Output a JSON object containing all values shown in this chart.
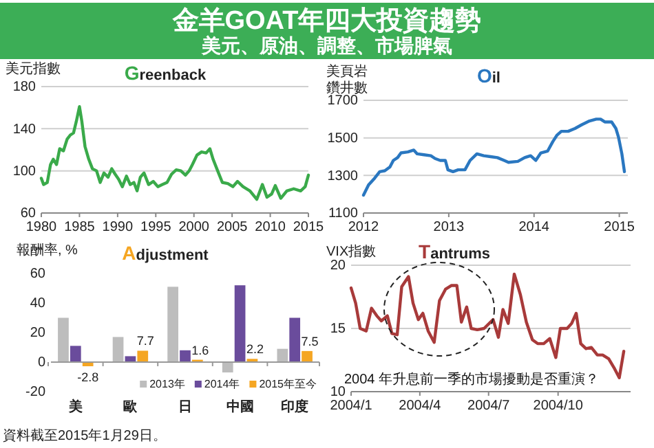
{
  "chart_data": [
    {
      "type": "other",
      "title": "金羊GOAT年四大投資趨勢",
      "subtitle": "美元、原油、調整、市場脾氣"
    },
    {
      "type": "line",
      "title": "Greenback",
      "ylabel": "美元指數",
      "grid": "y",
      "xlim": [
        1980,
        2015
      ],
      "xticks": [
        1980,
        1985,
        1990,
        1995,
        2000,
        2005,
        2010,
        2015
      ],
      "ylim": [
        60,
        180
      ],
      "yticks": [
        60,
        100,
        140,
        180
      ],
      "series": [
        {
          "color": "#3aaa4a",
          "x": [
            1980,
            1980.3,
            1980.78,
            1981.21,
            1981.57,
            1981.99,
            1982.41,
            1982.9,
            1983.38,
            1983.8,
            1984.22,
            1984.59,
            1985,
            1985.31,
            1985.73,
            1986.22,
            1986.7,
            1987.24,
            1987.72,
            1988.21,
            1988.75,
            1989.23,
            1989.66,
            1990.14,
            1990.62,
            1991.16,
            1991.65,
            1992.13,
            1992.55,
            1992.98,
            1993.46,
            1994.06,
            1994.67,
            1995.27,
            1995.87,
            1996.48,
            1997.08,
            1997.68,
            1998.29,
            1998.89,
            1999.37,
            1999.8,
            2000.4,
            2001,
            2001.6,
            2002.09,
            2002.51,
            2003.11,
            2003.72,
            2004.44,
            2005.11,
            2005.71,
            2006.43,
            2007.34,
            2008.24,
            2008.97,
            2009.57,
            2010.18,
            2010.66,
            2011.38,
            2012.17,
            2013.07,
            2013.98,
            2014.58,
            2015
          ],
          "values": [
            93,
            87,
            89,
            106,
            111,
            106,
            121,
            119,
            130,
            134,
            136,
            147,
            161,
            147,
            123,
            111,
            102,
            100,
            89,
            98,
            94,
            102,
            97,
            92,
            85,
            95,
            87,
            89,
            81,
            94,
            98,
            87,
            90,
            85,
            87,
            89,
            97,
            101,
            100,
            96,
            100,
            106,
            115,
            118,
            117,
            121,
            111,
            100,
            89,
            88,
            85,
            90,
            85,
            81,
            73,
            87,
            75,
            78,
            86,
            74,
            81,
            83,
            81,
            85,
            96
          ]
        }
      ]
    },
    {
      "type": "line",
      "title": "Oil",
      "ylabel": "美頁岩鑽井數",
      "grid": "y",
      "xlim": [
        2012,
        2015.1
      ],
      "xticks": [
        2012,
        2013,
        2014,
        2015
      ],
      "ylim": [
        1100,
        1700
      ],
      "yticks": [
        1100,
        1300,
        1500,
        1700
      ],
      "series": [
        {
          "color": "#2a77c0",
          "x": [
            2012,
            2012.06,
            2012.13,
            2012.19,
            2012.25,
            2012.31,
            2012.35,
            2012.4,
            2012.44,
            2012.52,
            2012.59,
            2012.63,
            2012.71,
            2012.79,
            2012.84,
            2012.9,
            2012.96,
            2012.99,
            2013.05,
            2013.11,
            2013.19,
            2013.25,
            2013.33,
            2013.41,
            2013.49,
            2013.57,
            2013.65,
            2013.7,
            2013.81,
            2013.89,
            2013.96,
            2014.02,
            2014.08,
            2014.16,
            2014.22,
            2014.27,
            2014.32,
            2014.4,
            2014.48,
            2014.56,
            2014.65,
            2014.73,
            2014.78,
            2014.83,
            2014.91,
            2014.96,
            2014.99,
            2015.03,
            2015.06
          ],
          "values": [
            1195,
            1250,
            1285,
            1320,
            1325,
            1345,
            1380,
            1395,
            1420,
            1425,
            1435,
            1415,
            1410,
            1405,
            1390,
            1380,
            1380,
            1330,
            1320,
            1330,
            1330,
            1380,
            1415,
            1405,
            1400,
            1395,
            1380,
            1370,
            1375,
            1395,
            1405,
            1380,
            1420,
            1430,
            1480,
            1515,
            1535,
            1535,
            1550,
            1570,
            1590,
            1600,
            1600,
            1585,
            1585,
            1550,
            1505,
            1415,
            1320
          ]
        }
      ]
    },
    {
      "type": "bar",
      "title": "Adjustment",
      "ylabel": "報酬率, %",
      "categories": [
        "美",
        "歐",
        "日",
        "中國",
        "印度"
      ],
      "ylim": [
        -20,
        60
      ],
      "yticks": [
        -20,
        0,
        20,
        40,
        60
      ],
      "legend": "bottom right",
      "series": [
        {
          "name": "2013年",
          "color": "#bdbdbd",
          "values": [
            30,
            17,
            51,
            -7,
            9
          ]
        },
        {
          "name": "2014年",
          "color": "#6a4c9c",
          "values": [
            11,
            4,
            8,
            52,
            30
          ]
        },
        {
          "name": "2015年至今",
          "color": "#f5a623",
          "values": [
            -2.8,
            7.7,
            1.6,
            2.2,
            7.5
          ],
          "value_labels": [
            "-2.8",
            "7.7",
            "1.6",
            "2.2",
            "7.5"
          ]
        }
      ],
      "annotations": [
        "資料截至2015年1月29日。"
      ]
    },
    {
      "type": "line",
      "title": "Tantrums",
      "ylabel": "VIX指數",
      "grid": "y",
      "xlim": [
        "2004-01-01",
        "2005-01-05"
      ],
      "xticks": [
        {
          "value": "2004-01-01",
          "label": "2004/1"
        },
        {
          "value": "2004-04-01",
          "label": "2004/4"
        },
        {
          "value": "2004-07-01",
          "label": "2004/7"
        },
        {
          "value": "2004-10-01",
          "label": "2004/10"
        }
      ],
      "ylim": [
        10,
        20
      ],
      "yticks": [
        10,
        15,
        20
      ],
      "series": [
        {
          "color": "#a83a3a",
          "x": [
            "2004-01-01",
            "2004-01-07",
            "2004-01-13",
            "2004-01-21",
            "2004-01-28",
            "2004-02-04",
            "2004-02-10",
            "2004-02-18",
            "2004-02-24",
            "2004-03-02",
            "2004-03-08",
            "2004-03-17",
            "2004-03-23",
            "2004-03-30",
            "2004-04-05",
            "2004-04-12",
            "2004-04-20",
            "2004-04-27",
            "2004-05-05",
            "2004-05-13",
            "2004-05-20",
            "2004-05-26",
            "2004-06-02",
            "2004-06-08",
            "2004-06-16",
            "2004-06-25",
            "2004-07-07",
            "2004-07-14",
            "2004-07-20",
            "2004-07-27",
            "2004-08-04",
            "2004-08-12",
            "2004-08-20",
            "2004-08-28",
            "2004-09-04",
            "2004-09-12",
            "2004-09-20",
            "2004-09-28",
            "2004-10-04",
            "2004-10-13",
            "2004-10-19",
            "2004-10-25",
            "2004-10-31",
            "2004-11-07",
            "2004-11-14",
            "2004-11-22",
            "2004-11-29",
            "2004-12-07",
            "2004-12-14",
            "2004-12-21",
            "2004-12-27"
          ],
          "values": [
            18.2,
            17.0,
            15.0,
            14.8,
            16.6,
            16.0,
            15.6,
            16.0,
            14.6,
            14.5,
            18.3,
            19.1,
            17.0,
            15.7,
            16.2,
            14.8,
            13.9,
            17.2,
            18.1,
            18.4,
            18.4,
            15.5,
            16.7,
            15.0,
            14.9,
            15.0,
            15.7,
            14.3,
            16.5,
            15.4,
            19.3,
            17.7,
            15.5,
            14.1,
            13.8,
            13.8,
            14.2,
            12.7,
            15.0,
            15.0,
            15.4,
            16.2,
            13.8,
            13.4,
            13.5,
            12.9,
            12.9,
            12.6,
            11.9,
            11.1,
            13.2
          ]
        }
      ],
      "annotations": [
        "2004 年升息前一季的市場擾動是否重演？"
      ]
    }
  ]
}
